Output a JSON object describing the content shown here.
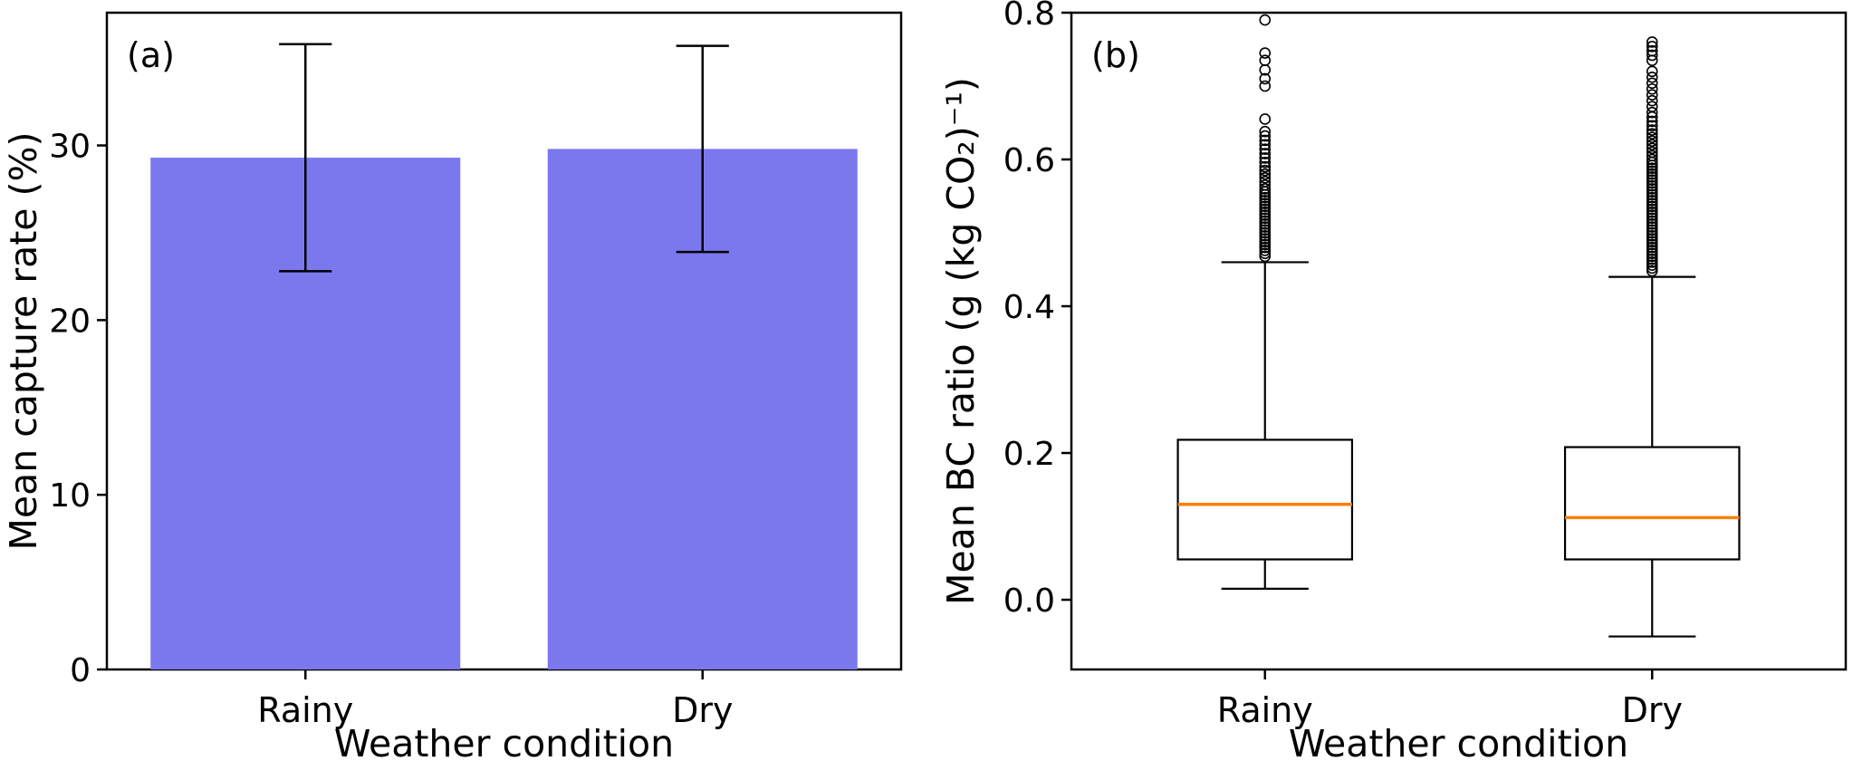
{
  "figure": {
    "background": "#ffffff",
    "text_color": "#000000"
  },
  "chart_data": [
    {
      "type": "bar",
      "panel_label": "(a)",
      "title": "",
      "xlabel": "Weather condition",
      "ylabel": "Mean capture rate (%)",
      "categories": [
        "Rainy",
        "Dry"
      ],
      "values": [
        29.3,
        29.8
      ],
      "error_low": [
        6.5,
        5.9
      ],
      "error_high": [
        6.5,
        5.9
      ],
      "ylim": [
        0,
        37.6
      ],
      "yticks": [
        {
          "v": 0,
          "label": "0"
        },
        {
          "v": 10,
          "label": "10"
        },
        {
          "v": 20,
          "label": "20"
        },
        {
          "v": 30,
          "label": "30"
        }
      ],
      "bar_color": "#7b78ee",
      "error_color": "#000000",
      "grid": false,
      "legend": "none"
    },
    {
      "type": "boxplot",
      "panel_label": "(b)",
      "title": "",
      "xlabel": "Weather condition",
      "ylabel": "Mean BC ratio (g (kg CO₂)⁻¹)",
      "categories": [
        "Rainy",
        "Dry"
      ],
      "ylim": [
        -0.095,
        0.8
      ],
      "yticks": [
        {
          "v": 0.0,
          "label": "0.0"
        },
        {
          "v": 0.2,
          "label": "0.2"
        },
        {
          "v": 0.4,
          "label": "0.4"
        },
        {
          "v": 0.6,
          "label": "0.6"
        },
        {
          "v": 0.8,
          "label": "0.8"
        }
      ],
      "median_color": "#ff7f0e",
      "box_color": "#000000",
      "grid": false,
      "legend": "none",
      "boxes": [
        {
          "category": "Rainy",
          "whisker_low": 0.015,
          "q1": 0.055,
          "median": 0.13,
          "q3": 0.218,
          "whisker_high": 0.46,
          "outliers": [
            0.468,
            0.472,
            0.476,
            0.48,
            0.484,
            0.488,
            0.492,
            0.496,
            0.5,
            0.504,
            0.508,
            0.512,
            0.516,
            0.52,
            0.524,
            0.528,
            0.532,
            0.536,
            0.54,
            0.544,
            0.548,
            0.552,
            0.556,
            0.56,
            0.565,
            0.57,
            0.575,
            0.58,
            0.585,
            0.59,
            0.596,
            0.602,
            0.608,
            0.614,
            0.62,
            0.626,
            0.632,
            0.638,
            0.655,
            0.7,
            0.71,
            0.722,
            0.735,
            0.745,
            0.79
          ]
        },
        {
          "category": "Dry",
          "whisker_low": -0.05,
          "q1": 0.055,
          "median": 0.112,
          "q3": 0.208,
          "whisker_high": 0.44,
          "outliers": [
            0.448,
            0.452,
            0.456,
            0.46,
            0.464,
            0.468,
            0.472,
            0.476,
            0.48,
            0.484,
            0.488,
            0.492,
            0.496,
            0.5,
            0.504,
            0.508,
            0.512,
            0.516,
            0.52,
            0.524,
            0.528,
            0.532,
            0.536,
            0.54,
            0.544,
            0.548,
            0.552,
            0.556,
            0.56,
            0.564,
            0.568,
            0.572,
            0.576,
            0.58,
            0.584,
            0.588,
            0.592,
            0.596,
            0.6,
            0.605,
            0.61,
            0.615,
            0.62,
            0.625,
            0.63,
            0.635,
            0.64,
            0.646,
            0.652,
            0.658,
            0.664,
            0.672,
            0.68,
            0.688,
            0.696,
            0.704,
            0.712,
            0.72,
            0.735,
            0.742,
            0.748,
            0.754,
            0.76
          ]
        }
      ]
    }
  ]
}
